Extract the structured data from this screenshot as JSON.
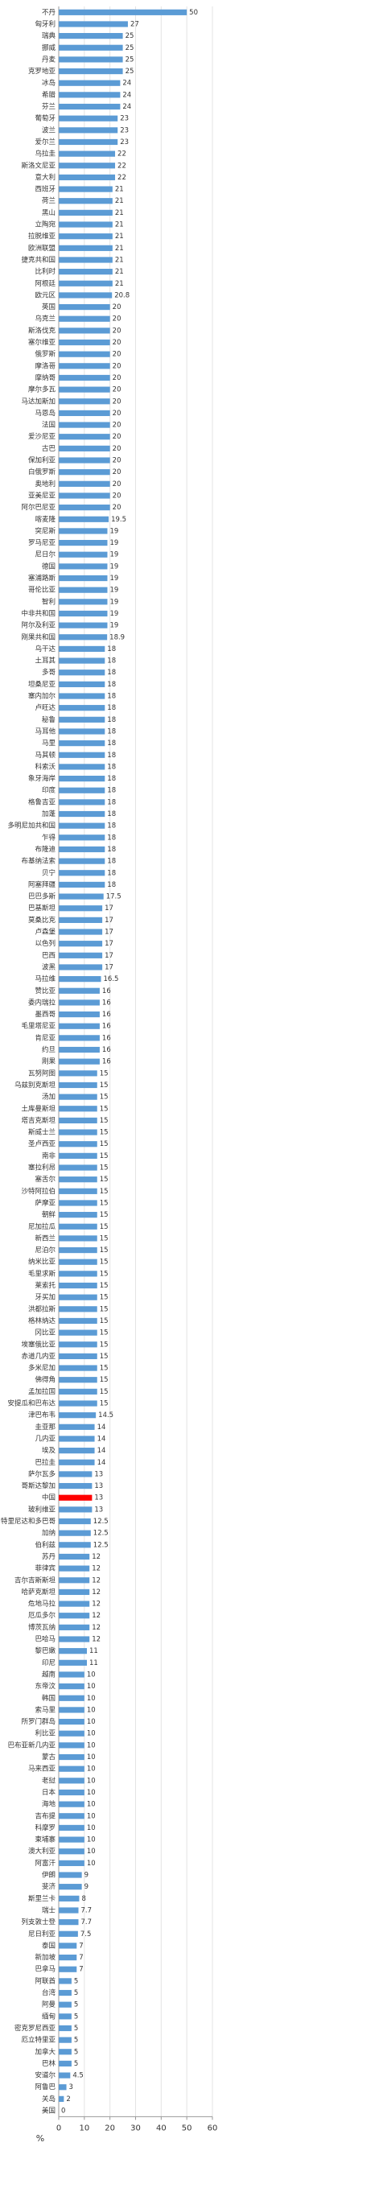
{
  "chart_data": {
    "type": "barh",
    "xlabel": "%",
    "categories": [
      "不丹",
      "匈牙利",
      "瑞典",
      "挪威",
      "丹麦",
      "克罗地亚",
      "冰岛",
      "希腊",
      "芬兰",
      "葡萄牙",
      "波兰",
      "爱尔兰",
      "乌拉圭",
      "斯洛文尼亚",
      "意大利",
      "西班牙",
      "荷兰",
      "黑山",
      "立陶宛",
      "拉脱维亚",
      "欧洲联盟",
      "捷克共和国",
      "比利时",
      "阿根廷",
      "欧元区",
      "英国",
      "乌克兰",
      "斯洛伐克",
      "塞尔维亚",
      "俄罗斯",
      "摩洛哥",
      "摩纳哥",
      "摩尔多瓦",
      "马达加斯加",
      "马恩岛",
      "法国",
      "爱沙尼亚",
      "古巴",
      "保加利亚",
      "白俄罗斯",
      "奥地利",
      "亚美尼亚",
      "阿尔巴尼亚",
      "喀麦隆",
      "突尼斯",
      "罗马尼亚",
      "尼日尔",
      "德国",
      "塞浦路斯",
      "哥伦比亚",
      "智利",
      "中非共和国",
      "阿尔及利亚",
      "刚果共和国",
      "乌干达",
      "土耳其",
      "多哥",
      "坦桑尼亚",
      "塞内加尔",
      "卢旺达",
      "秘鲁",
      "马耳他",
      "马里",
      "马其顿",
      "科索沃",
      "象牙海岸",
      "印度",
      "格鲁吉亚",
      "加蓬",
      "多明尼加共和国",
      "乍得",
      "布隆迪",
      "布基纳法索",
      "贝宁",
      "阿塞拜疆",
      "巴巴多斯",
      "巴基斯坦",
      "莫桑比克",
      "卢森堡",
      "以色列",
      "巴西",
      "波黑",
      "马拉维",
      "赞比亚",
      "委内瑞拉",
      "墨西哥",
      "毛里塔尼亚",
      "肯尼亚",
      "约旦",
      "刚果",
      "瓦努阿图",
      "乌兹别克斯坦",
      "汤加",
      "土库曼斯坦",
      "塔吉克斯坦",
      "斯威士兰",
      "圣卢西亚",
      "南非",
      "塞拉利昂",
      "塞舌尔",
      "沙特阿拉伯",
      "萨摩亚",
      "朝鲜",
      "尼加拉瓜",
      "新西兰",
      "尼泊尔",
      "纳米比亚",
      "毛里求斯",
      "莱索托",
      "牙买加",
      "洪都拉斯",
      "格林纳达",
      "冈比亚",
      "埃塞俄比亚",
      "赤道几内亚",
      "多米尼加",
      "佛得角",
      "孟加拉国",
      "安提瓜和巴布达",
      "津巴布韦",
      "圭亚那",
      "几内亚",
      "埃及",
      "巴拉圭",
      "萨尔瓦多",
      "哥斯达黎加",
      "中国",
      "玻利维亚",
      "特里尼达和多巴哥",
      "加纳",
      "伯利兹",
      "苏丹",
      "菲律宾",
      "吉尔吉斯斯坦",
      "哈萨克斯坦",
      "危地马拉",
      "厄瓜多尔",
      "博茨瓦纳",
      "巴哈马",
      "黎巴嫩",
      "印尼",
      "越南",
      "东帝汶",
      "韩国",
      "索马里",
      "所罗门群岛",
      "利比亚",
      "巴布亚新几内亚",
      "蒙古",
      "马来西亚",
      "老挝",
      "日本",
      "海地",
      "吉布提",
      "科摩罗",
      "柬埔寨",
      "澳大利亚",
      "阿富汗",
      "伊朗",
      "斐济",
      "斯里兰卡",
      "瑞士",
      "列支敦士登",
      "尼日利亚",
      "泰国",
      "新加坡",
      "巴拿马",
      "阿联酋",
      "台湾",
      "阿曼",
      "缅甸",
      "密克罗尼西亚",
      "厄立特里亚",
      "加拿大",
      "巴林",
      "安道尔",
      "阿鲁巴",
      "关岛",
      "美国"
    ],
    "values": [
      50,
      27,
      25,
      25,
      25,
      25,
      24,
      24,
      24,
      23,
      23,
      23,
      22,
      22,
      22,
      21,
      21,
      21,
      21,
      21,
      21,
      21,
      21,
      21,
      20.8,
      20,
      20,
      20,
      20,
      20,
      20,
      20,
      20,
      20,
      20,
      20,
      20,
      20,
      20,
      20,
      20,
      20,
      20,
      19.5,
      19,
      19,
      19,
      19,
      19,
      19,
      19,
      19,
      19,
      18.9,
      18,
      18,
      18,
      18,
      18,
      18,
      18,
      18,
      18,
      18,
      18,
      18,
      18,
      18,
      18,
      18,
      18,
      18,
      18,
      18,
      18,
      17.5,
      17,
      17,
      17,
      17,
      17,
      17,
      16.5,
      16,
      16,
      16,
      16,
      16,
      16,
      16,
      15,
      15,
      15,
      15,
      15,
      15,
      15,
      15,
      15,
      15,
      15,
      15,
      15,
      15,
      15,
      15,
      15,
      15,
      15,
      15,
      15,
      15,
      15,
      15,
      15,
      15,
      15,
      15,
      15,
      14.5,
      14,
      14,
      14,
      14,
      13,
      13,
      13,
      13,
      12.5,
      12.5,
      12.5,
      12,
      12,
      12,
      12,
      12,
      12,
      12,
      12,
      11,
      11,
      10,
      10,
      10,
      10,
      10,
      10,
      10,
      10,
      10,
      10,
      10,
      10,
      10,
      10,
      10,
      10,
      10,
      9,
      9,
      8,
      7.7,
      7.7,
      7.5,
      7,
      7,
      7,
      5,
      5,
      5,
      5,
      5,
      5,
      5,
      5,
      4.5,
      3,
      2,
      0
    ],
    "colors": [
      "#5b9bd5",
      "#5b9bd5",
      "#5b9bd5",
      "#5b9bd5",
      "#5b9bd5",
      "#5b9bd5",
      "#5b9bd5",
      "#5b9bd5",
      "#5b9bd5",
      "#5b9bd5",
      "#5b9bd5",
      "#5b9bd5",
      "#5b9bd5",
      "#5b9bd5",
      "#5b9bd5",
      "#5b9bd5",
      "#5b9bd5",
      "#5b9bd5",
      "#5b9bd5",
      "#5b9bd5",
      "#5b9bd5",
      "#5b9bd5",
      "#5b9bd5",
      "#5b9bd5",
      "#5b9bd5",
      "#5b9bd5",
      "#5b9bd5",
      "#5b9bd5",
      "#5b9bd5",
      "#5b9bd5",
      "#5b9bd5",
      "#5b9bd5",
      "#5b9bd5",
      "#5b9bd5",
      "#5b9bd5",
      "#5b9bd5",
      "#5b9bd5",
      "#5b9bd5",
      "#5b9bd5",
      "#5b9bd5",
      "#5b9bd5",
      "#5b9bd5",
      "#5b9bd5",
      "#5b9bd5",
      "#5b9bd5",
      "#5b9bd5",
      "#5b9bd5",
      "#5b9bd5",
      "#5b9bd5",
      "#5b9bd5",
      "#5b9bd5",
      "#5b9bd5",
      "#5b9bd5",
      "#5b9bd5",
      "#5b9bd5",
      "#5b9bd5",
      "#5b9bd5",
      "#5b9bd5",
      "#5b9bd5",
      "#5b9bd5",
      "#5b9bd5",
      "#5b9bd5",
      "#5b9bd5",
      "#5b9bd5",
      "#5b9bd5",
      "#5b9bd5",
      "#5b9bd5",
      "#5b9bd5",
      "#5b9bd5",
      "#5b9bd5",
      "#5b9bd5",
      "#5b9bd5",
      "#5b9bd5",
      "#5b9bd5",
      "#5b9bd5",
      "#5b9bd5",
      "#5b9bd5",
      "#5b9bd5",
      "#5b9bd5",
      "#5b9bd5",
      "#5b9bd5",
      "#5b9bd5",
      "#5b9bd5",
      "#5b9bd5",
      "#5b9bd5",
      "#5b9bd5",
      "#5b9bd5",
      "#5b9bd5",
      "#5b9bd5",
      "#5b9bd5",
      "#5b9bd5",
      "#5b9bd5",
      "#5b9bd5",
      "#5b9bd5",
      "#5b9bd5",
      "#5b9bd5",
      "#5b9bd5",
      "#5b9bd5",
      "#5b9bd5",
      "#5b9bd5",
      "#5b9bd5",
      "#5b9bd5",
      "#5b9bd5",
      "#5b9bd5",
      "#5b9bd5",
      "#5b9bd5",
      "#5b9bd5",
      "#5b9bd5",
      "#5b9bd5",
      "#5b9bd5",
      "#5b9bd5",
      "#5b9bd5",
      "#5b9bd5",
      "#5b9bd5",
      "#5b9bd5",
      "#5b9bd5",
      "#5b9bd5",
      "#5b9bd5",
      "#5b9bd5",
      "#5b9bd5",
      "#5b9bd5",
      "#5b9bd5",
      "#5b9bd5",
      "#5b9bd5",
      "#5b9bd5",
      "#5b9bd5",
      "#ff0000",
      "#5b9bd5",
      "#5b9bd5",
      "#5b9bd5",
      "#5b9bd5",
      "#5b9bd5",
      "#5b9bd5",
      "#5b9bd5",
      "#5b9bd5",
      "#5b9bd5",
      "#5b9bd5",
      "#5b9bd5",
      "#5b9bd5",
      "#5b9bd5",
      "#5b9bd5",
      "#5b9bd5",
      "#5b9bd5",
      "#5b9bd5",
      "#5b9bd5",
      "#5b9bd5",
      "#5b9bd5",
      "#5b9bd5",
      "#5b9bd5",
      "#5b9bd5",
      "#5b9bd5",
      "#5b9bd5",
      "#5b9bd5",
      "#5b9bd5",
      "#5b9bd5",
      "#5b9bd5",
      "#5b9bd5",
      "#5b9bd5",
      "#5b9bd5",
      "#5b9bd5",
      "#5b9bd5",
      "#5b9bd5",
      "#5b9bd5",
      "#5b9bd5",
      "#5b9bd5",
      "#5b9bd5",
      "#5b9bd5",
      "#5b9bd5",
      "#5b9bd5",
      "#5b9bd5",
      "#5b9bd5",
      "#5b9bd5",
      "#5b9bd5",
      "#5b9bd5",
      "#5b9bd5",
      "#5b9bd5",
      "#5b9bd5",
      "#5b9bd5",
      "#5b9bd5"
    ],
    "xlim": [
      0,
      60
    ],
    "xticks": [
      0,
      10,
      20,
      30,
      40,
      50,
      60
    ],
    "grid": true
  }
}
